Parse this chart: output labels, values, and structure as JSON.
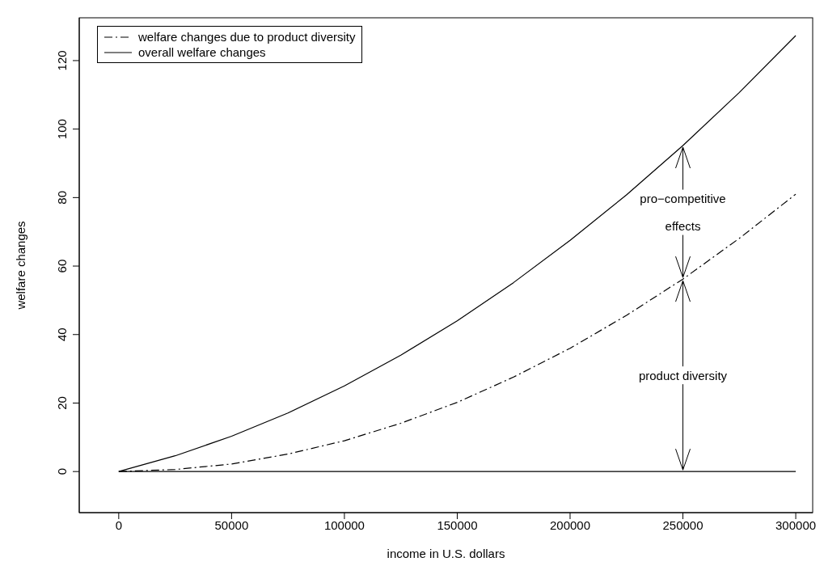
{
  "chart_data": {
    "type": "line",
    "xlabel": "income in U.S. dollars",
    "ylabel": "welfare changes",
    "x": [
      0,
      25000,
      50000,
      75000,
      100000,
      125000,
      150000,
      175000,
      200000,
      225000,
      250000,
      275000,
      300000
    ],
    "series": [
      {
        "name": "welfare changes due to product diversity",
        "color": "#000000",
        "line_style": "dashed",
        "values": [
          0,
          0.6,
          2.2,
          5.1,
          9,
          14.1,
          20.2,
          27.6,
          36,
          45.6,
          56.2,
          68.1,
          81
        ]
      },
      {
        "name": "overall welfare changes",
        "color": "#000000",
        "line_style": "solid",
        "values": [
          0,
          4.6,
          10.3,
          17.1,
          25,
          34,
          44,
          55.2,
          67.5,
          80.8,
          95.2,
          110.7,
          127.3
        ]
      },
      {
        "color": "#000000",
        "line_style": "solid",
        "values": [
          0,
          0,
          0,
          0,
          0,
          0,
          0,
          0,
          0,
          0,
          0,
          0,
          0
        ]
      }
    ],
    "xlim": [
      -17500,
      307500
    ],
    "xticks": [
      0,
      50000,
      100000,
      150000,
      200000,
      250000,
      300000
    ],
    "ylim": [
      -12,
      132.5
    ],
    "yticks": [
      0,
      20,
      40,
      60,
      80,
      100,
      120
    ],
    "legend": "top left",
    "marker": "none",
    "annotations": [
      {
        "text": "pro−competitive effects",
        "x": 250000,
        "y": 95.2
      },
      {
        "text": "product diversity",
        "x": 250000,
        "y": 56.2
      }
    ]
  }
}
